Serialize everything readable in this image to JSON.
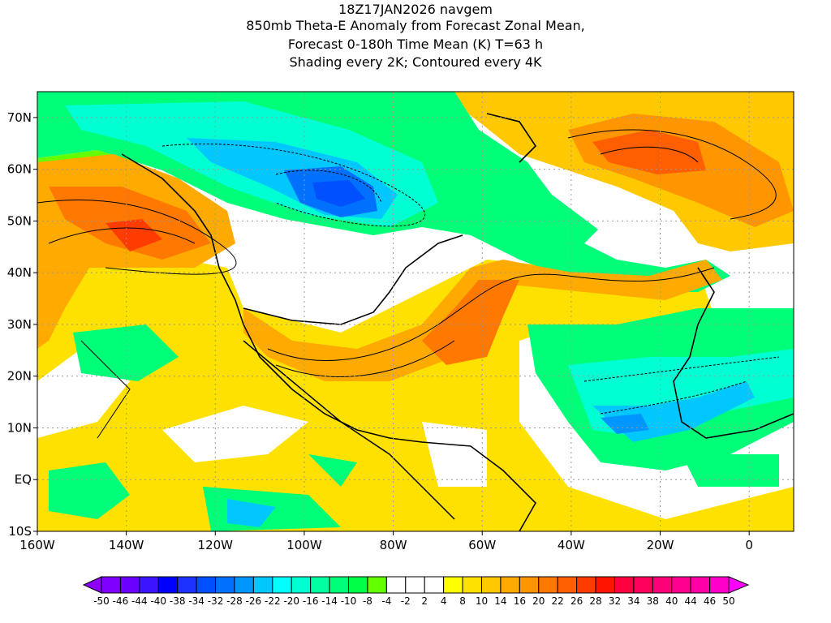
{
  "title": {
    "line1": "18Z17JAN2026 navgem",
    "line2": "850mb Theta-E Anomaly from Forecast Zonal Mean,",
    "line3": "Forecast 0-180h Time Mean (K) T=63 h",
    "line4": "Shading every 2K; Contoured every 4K"
  },
  "map": {
    "lon_range": [
      -160,
      10
    ],
    "lat_range": [
      -10,
      75
    ],
    "lat_labels": [
      "70N",
      "60N",
      "50N",
      "40N",
      "30N",
      "20N",
      "10N",
      "EQ",
      "10S"
    ],
    "lat_values": [
      70,
      60,
      50,
      40,
      30,
      20,
      10,
      0,
      -10
    ],
    "lon_labels": [
      "160W",
      "140W",
      "120W",
      "100W",
      "80W",
      "60W",
      "40W",
      "20W",
      "0"
    ],
    "lon_values": [
      -160,
      -140,
      -120,
      -100,
      -80,
      -60,
      -40,
      -20,
      0
    ]
  },
  "colorbar": {
    "labels": [
      "-50",
      "-46",
      "-44",
      "-40",
      "-38",
      "-34",
      "-32",
      "-28",
      "-26",
      "-22",
      "-20",
      "-16",
      "-14",
      "-10",
      "-8",
      "-4",
      "-2",
      "2",
      "4",
      "8",
      "10",
      "14",
      "16",
      "20",
      "22",
      "26",
      "28",
      "32",
      "34",
      "38",
      "40",
      "44",
      "46",
      "50"
    ],
    "under_color": "#8c00ff",
    "over_color": "#ff00ff",
    "colors": [
      "#7f00ff",
      "#6a00ff",
      "#3c14ff",
      "#0000ff",
      "#1e32ff",
      "#0050ff",
      "#0070ff",
      "#0096ff",
      "#00c8ff",
      "#00ffff",
      "#00ffd2",
      "#00ffa0",
      "#00ff78",
      "#00ff46",
      "#64ff00",
      "#ffffff",
      "#ffffff",
      "#ffffff",
      "#ffff00",
      "#ffe100",
      "#ffc800",
      "#ffaa00",
      "#ff9600",
      "#ff7800",
      "#ff5f00",
      "#ff3c00",
      "#ff1400",
      "#ff0040",
      "#ff005a",
      "#ff0078",
      "#ff0090",
      "#ff00a8",
      "#ff00c8"
    ]
  }
}
